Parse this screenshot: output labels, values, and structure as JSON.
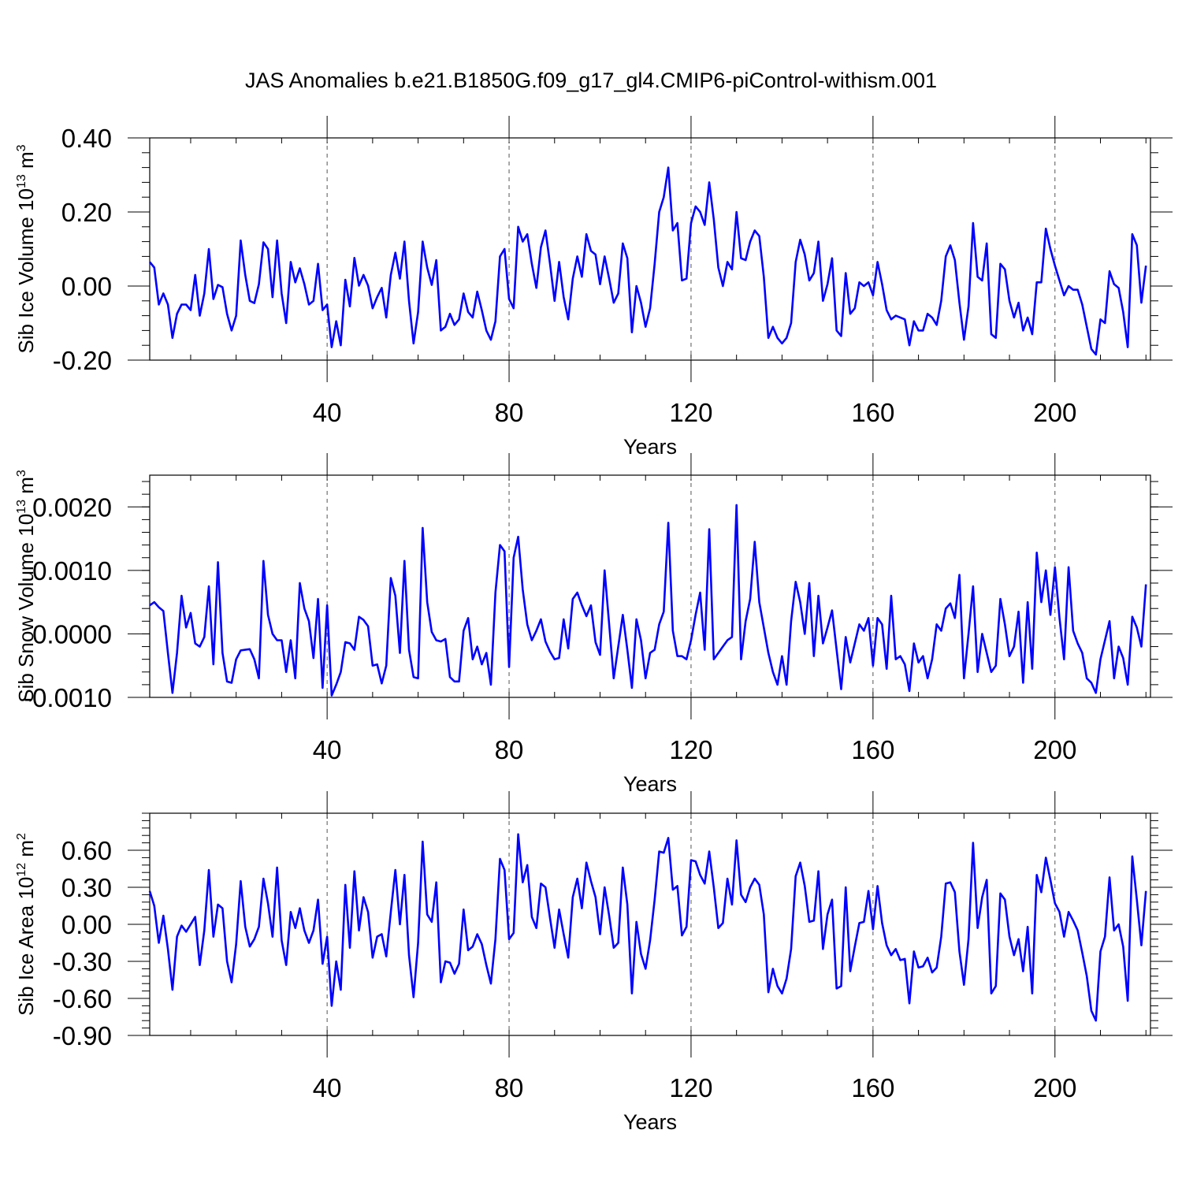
{
  "title": "JAS Anomalies b.e21.B1850G.f09_g17_gl4.CMIP6-piControl-withism.001",
  "line_color": "#0000ff",
  "chart_data": [
    {
      "type": "line",
      "ylabel_parts": [
        "Sib Ice Volume 10",
        "13",
        " m",
        "3"
      ],
      "xlabel": "Years",
      "xlim": [
        1,
        221
      ],
      "ylim": [
        -0.2,
        0.4
      ],
      "x_ticks": [
        "40",
        "80",
        "120",
        "160",
        "200"
      ],
      "y_ticks": [
        "-0.20",
        "0.00",
        "0.20",
        "0.40"
      ],
      "grid": "vertical dashed at x ticks",
      "x_start": 1,
      "values": [
        0.065,
        0.05,
        -0.05,
        -0.02,
        -0.05,
        -0.14,
        -0.075,
        -0.05,
        -0.05,
        -0.065,
        0.03,
        -0.08,
        -0.02,
        0.1,
        -0.035,
        0.003,
        -0.003,
        -0.075,
        -0.12,
        -0.08,
        0.123,
        0.03,
        -0.04,
        -0.046,
        0.005,
        0.118,
        0.1,
        -0.03,
        0.123,
        -0.02,
        -0.1,
        0.065,
        0.01,
        0.048,
        0.005,
        -0.05,
        -0.04,
        0.06,
        -0.065,
        -0.05,
        -0.165,
        -0.095,
        -0.16,
        0.017,
        -0.055,
        0.076,
        0.001,
        0.03,
        0.001,
        -0.06,
        -0.03,
        -0.005,
        -0.085,
        0.03,
        0.09,
        0.02,
        0.12,
        -0.04,
        -0.155,
        -0.07,
        0.12,
        0.05,
        0.003,
        0.07,
        -0.12,
        -0.11,
        -0.075,
        -0.105,
        -0.09,
        -0.02,
        -0.07,
        -0.085,
        -0.015,
        -0.065,
        -0.12,
        -0.145,
        -0.095,
        0.08,
        0.1,
        -0.035,
        -0.06,
        0.16,
        0.12,
        0.14,
        0.06,
        -0.005,
        0.105,
        0.15,
        0.06,
        -0.04,
        0.065,
        -0.03,
        -0.09,
        0.02,
        0.08,
        0.025,
        0.14,
        0.095,
        0.085,
        0.005,
        0.08,
        0.02,
        -0.045,
        -0.02,
        0.115,
        0.075,
        -0.125,
        0.0,
        -0.045,
        -0.11,
        -0.06,
        0.06,
        0.2,
        0.24,
        0.32,
        0.15,
        0.17,
        0.015,
        0.02,
        0.17,
        0.215,
        0.2,
        0.165,
        0.28,
        0.18,
        0.05,
        0.0,
        0.065,
        0.045,
        0.2,
        0.075,
        0.07,
        0.12,
        0.15,
        0.135,
        0.025,
        -0.14,
        -0.11,
        -0.14,
        -0.155,
        -0.14,
        -0.1,
        0.065,
        0.125,
        0.085,
        0.015,
        0.035,
        0.12,
        -0.04,
        0.005,
        0.075,
        -0.12,
        -0.135,
        0.035,
        -0.075,
        -0.06,
        0.01,
        0.0,
        0.01,
        -0.025,
        0.065,
        0.005,
        -0.065,
        -0.09,
        -0.08,
        -0.085,
        -0.09,
        -0.16,
        -0.095,
        -0.12,
        -0.12,
        -0.075,
        -0.085,
        -0.105,
        -0.04,
        0.08,
        0.11,
        0.07,
        -0.045,
        -0.145,
        -0.055,
        0.17,
        0.025,
        0.015,
        0.115,
        -0.13,
        -0.14,
        0.06,
        0.045,
        -0.04,
        -0.085,
        -0.045,
        -0.12,
        -0.085,
        -0.13,
        0.01,
        0.01,
        0.155,
        0.1,
        0.055,
        0.015,
        -0.025,
        0.0,
        -0.01,
        -0.01,
        -0.05,
        -0.11,
        -0.17,
        -0.185,
        -0.09,
        -0.1,
        0.04,
        0.005,
        -0.005,
        -0.07,
        -0.165,
        0.14,
        0.11,
        -0.045,
        0.055
      ]
    },
    {
      "type": "line",
      "ylabel_parts": [
        "Sib Snow Volume 10",
        "13",
        " m",
        "3"
      ],
      "xlabel": "Years",
      "xlim": [
        1,
        221
      ],
      "ylim": [
        -0.001,
        0.0025
      ],
      "x_ticks": [
        "40",
        "80",
        "120",
        "160",
        "200"
      ],
      "y_ticks": [
        "-0.0010",
        "0.0000",
        "0.0010",
        "0.0020"
      ],
      "grid": "vertical dashed at x ticks",
      "x_start": 1,
      "values": [
        0.00045,
        0.0005,
        0.00042,
        0.00036,
        -0.0003,
        -0.00093,
        -0.0003,
        0.0006,
        0.0001,
        0.00033,
        -0.00015,
        -0.0002,
        -5e-05,
        0.00075,
        -0.00048,
        0.00113,
        -0.0003,
        -0.00075,
        -0.00077,
        -0.0004,
        -0.00026,
        -0.00025,
        -0.00024,
        -0.0004,
        -0.0007,
        0.00115,
        0.0003,
        0.0,
        -0.0001,
        -0.0001,
        -0.0006,
        -0.0001,
        -0.0007,
        0.0008,
        0.0004,
        0.0002,
        -0.00038,
        0.00055,
        -0.00085,
        0.00045,
        -0.00097,
        -0.0008,
        -0.0006,
        -0.00013,
        -0.00015,
        -0.00025,
        0.00027,
        0.00022,
        0.00012,
        -0.0005,
        -0.00048,
        -0.00078,
        -0.0005,
        0.00088,
        0.0006,
        -0.0003,
        0.00115,
        -0.00025,
        -0.00068,
        -0.0007,
        0.00167,
        0.0005,
        3e-05,
        -0.0001,
        -0.00012,
        -8e-05,
        -0.00068,
        -0.00075,
        -0.00075,
        5e-05,
        0.00025,
        -0.0004,
        -0.0002,
        -0.00048,
        -0.0003,
        -0.0008,
        0.00065,
        0.0014,
        0.0013,
        -0.00052,
        0.0012,
        0.00153,
        0.0007,
        0.00015,
        -0.0001,
        5e-05,
        0.00023,
        -0.00012,
        -0.00028,
        -0.0004,
        -0.00038,
        0.00023,
        -0.00023,
        0.00055,
        0.00065,
        0.00045,
        0.00028,
        0.00045,
        -0.00013,
        -0.00033,
        0.001,
        0.00015,
        -0.0007,
        -0.0002,
        0.0003,
        -0.00025,
        -0.00085,
        0.00023,
        -0.0001,
        -0.0007,
        -0.0003,
        -0.00025,
        0.00015,
        0.00035,
        0.00175,
        5e-05,
        -0.00035,
        -0.00035,
        -0.0004,
        -0.0001,
        0.0003,
        0.00065,
        -0.00025,
        0.00165,
        -0.0004,
        -0.0003,
        -0.0002,
        -0.0001,
        -5e-05,
        0.00203,
        -0.0004,
        0.0002,
        0.00055,
        0.00145,
        0.0005,
        0.0001,
        -0.0003,
        -0.0006,
        -0.0008,
        -0.00035,
        -0.0008,
        0.0002,
        0.00082,
        0.0005,
        0.0,
        0.0008,
        -0.00035,
        0.0006,
        -0.00015,
        0.0001,
        0.00037,
        -0.00025,
        -0.00087,
        -5e-05,
        -0.00045,
        -0.00015,
        0.00015,
        5e-05,
        0.00025,
        -0.0005,
        0.00025,
        0.00015,
        -0.00055,
        0.0006,
        -0.0004,
        -0.00035,
        -0.00048,
        -0.0009,
        -0.00015,
        -0.00045,
        -0.00035,
        -0.0007,
        -0.0004,
        0.00015,
        5e-05,
        0.0004,
        0.00048,
        0.00025,
        0.00093,
        -0.0007,
        0.0,
        0.00075,
        -0.0006,
        0.0,
        -0.0003,
        -0.0006,
        -0.0005,
        0.00055,
        0.00015,
        -0.00035,
        -0.0002,
        0.00035,
        -0.00077,
        0.0005,
        -0.00055,
        0.00128,
        0.0005,
        0.001,
        0.0003,
        0.00105,
        0.00025,
        -0.0004,
        0.00105,
        5e-05,
        -0.00015,
        -0.0003,
        -0.0007,
        -0.00077,
        -0.00093,
        -0.0004,
        -0.0001,
        0.0002,
        -0.0007,
        -0.0002,
        -0.00038,
        -0.0008,
        0.00027,
        0.0001,
        -0.0002,
        0.00078
      ]
    },
    {
      "type": "line",
      "ylabel_parts": [
        "Sib Ice Area 10",
        "12",
        " m",
        "2"
      ],
      "xlabel": "Years",
      "xlim": [
        1,
        221
      ],
      "ylim": [
        -0.9,
        0.9
      ],
      "x_ticks": [
        "40",
        "80",
        "120",
        "160",
        "200"
      ],
      "y_ticks": [
        "-0.90",
        "-0.60",
        "-0.30",
        "0.00",
        "0.30",
        "0.60"
      ],
      "grid": "vertical dashed at x ticks",
      "x_start": 1,
      "values": [
        0.27,
        0.15,
        -0.15,
        0.07,
        -0.2,
        -0.53,
        -0.1,
        -0.01,
        -0.06,
        0.0,
        0.06,
        -0.33,
        -0.05,
        0.44,
        -0.1,
        0.16,
        0.13,
        -0.3,
        -0.47,
        -0.16,
        0.35,
        -0.02,
        -0.18,
        -0.12,
        -0.02,
        0.37,
        0.17,
        -0.1,
        0.46,
        -0.13,
        -0.33,
        0.1,
        -0.03,
        0.13,
        -0.05,
        -0.15,
        -0.05,
        0.2,
        -0.32,
        -0.1,
        -0.66,
        -0.3,
        -0.53,
        0.32,
        -0.19,
        0.43,
        -0.05,
        0.22,
        0.1,
        -0.27,
        -0.1,
        -0.08,
        -0.26,
        0.1,
        0.44,
        0.0,
        0.4,
        -0.25,
        -0.59,
        -0.15,
        0.67,
        0.08,
        0.02,
        0.34,
        -0.47,
        -0.3,
        -0.31,
        -0.4,
        -0.32,
        0.12,
        -0.21,
        -0.18,
        -0.08,
        -0.16,
        -0.33,
        -0.48,
        -0.12,
        0.53,
        0.44,
        -0.12,
        -0.07,
        0.73,
        0.34,
        0.48,
        0.06,
        -0.03,
        0.33,
        0.3,
        0.05,
        -0.19,
        0.12,
        -0.08,
        -0.27,
        0.22,
        0.37,
        0.13,
        0.5,
        0.35,
        0.22,
        -0.08,
        0.3,
        0.07,
        -0.19,
        -0.15,
        0.46,
        0.16,
        -0.56,
        0.02,
        -0.24,
        -0.36,
        -0.13,
        0.2,
        0.59,
        0.58,
        0.7,
        0.28,
        0.31,
        -0.09,
        -0.02,
        0.52,
        0.51,
        0.4,
        0.33,
        0.59,
        0.3,
        -0.03,
        0.01,
        0.37,
        0.16,
        0.68,
        0.24,
        0.18,
        0.3,
        0.37,
        0.32,
        0.08,
        -0.55,
        -0.36,
        -0.5,
        -0.56,
        -0.44,
        -0.2,
        0.39,
        0.5,
        0.31,
        0.02,
        0.03,
        0.43,
        -0.2,
        0.08,
        0.2,
        -0.52,
        -0.5,
        0.3,
        -0.38,
        -0.18,
        0.01,
        0.02,
        0.27,
        -0.04,
        0.31,
        0.01,
        -0.17,
        -0.25,
        -0.2,
        -0.29,
        -0.28,
        -0.64,
        -0.22,
        -0.35,
        -0.34,
        -0.27,
        -0.39,
        -0.35,
        -0.1,
        0.33,
        0.34,
        0.26,
        -0.22,
        -0.49,
        -0.12,
        0.66,
        -0.03,
        0.22,
        0.36,
        -0.56,
        -0.5,
        0.25,
        0.2,
        -0.1,
        -0.25,
        -0.12,
        -0.38,
        -0.02,
        -0.56,
        0.4,
        0.26,
        0.54,
        0.36,
        0.17,
        0.1,
        -0.1,
        0.1,
        0.03,
        -0.05,
        -0.23,
        -0.42,
        -0.7,
        -0.78,
        -0.22,
        -0.1,
        0.38,
        -0.05,
        0.0,
        -0.18,
        -0.62,
        0.55,
        0.2,
        -0.17,
        0.27
      ]
    }
  ]
}
